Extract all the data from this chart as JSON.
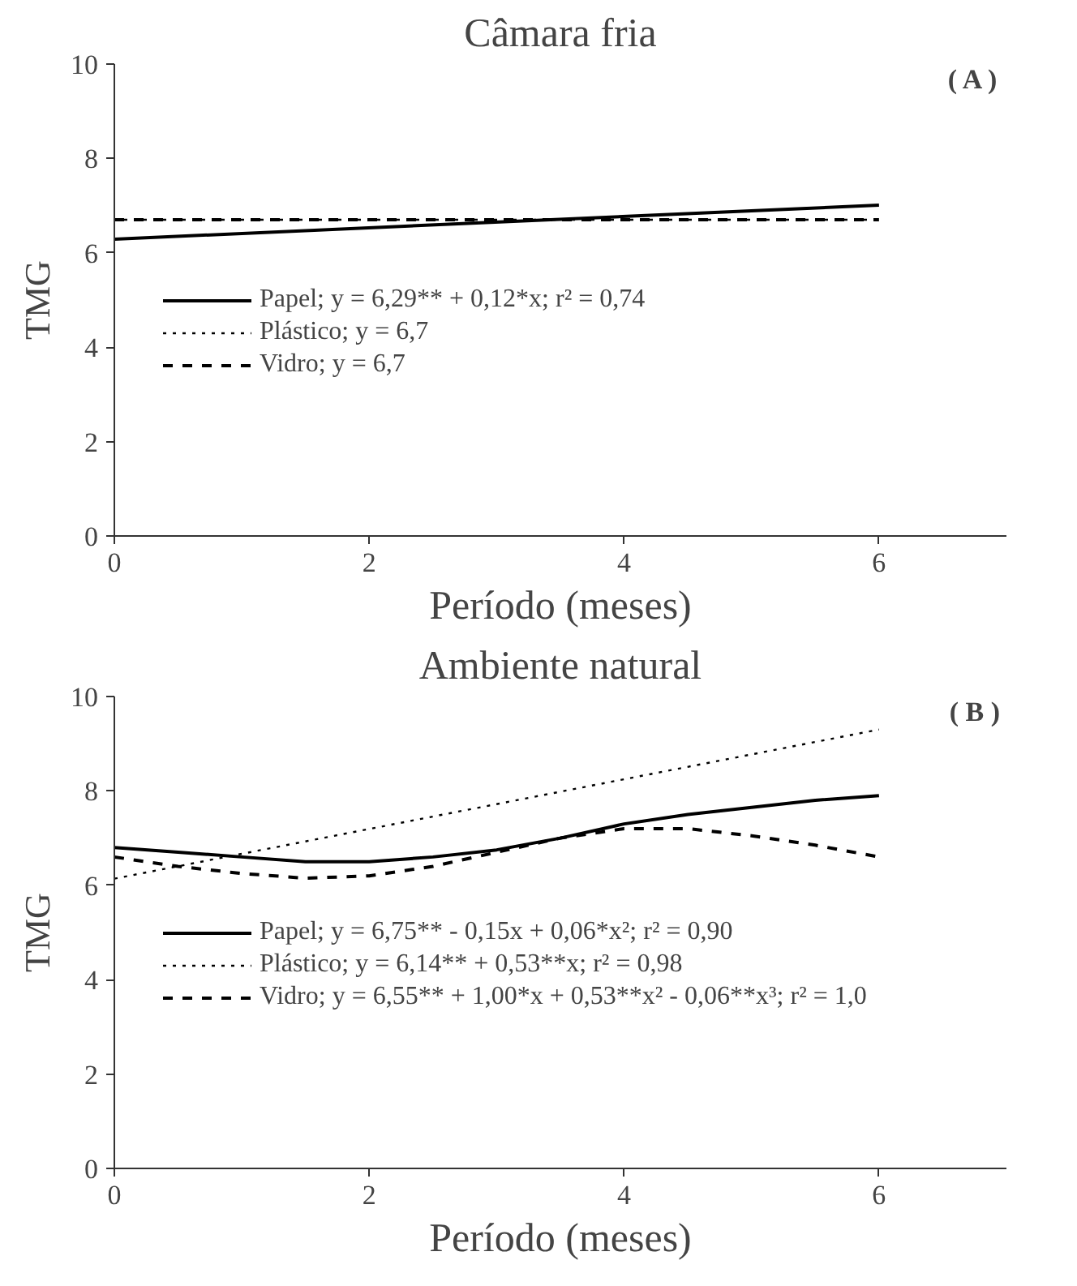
{
  "chart_data": [
    {
      "type": "line",
      "title": "Câmara fria",
      "xlabel": "Período (meses)",
      "ylabel": "TMG",
      "annotations": [
        "( A )"
      ],
      "xlim": [
        0,
        7
      ],
      "xticks": [
        0,
        2,
        4,
        6
      ],
      "ylim": [
        0,
        10
      ],
      "yticks": [
        0,
        2,
        4,
        6,
        8,
        10
      ],
      "grid": false,
      "legend": "left",
      "marker": "none",
      "series": [
        {
          "name": "Papel; y = 6,29** + 0,12*x; r² = 0,74",
          "color": "#000000",
          "line_style": "solid",
          "x": [
            0,
            6
          ],
          "values": [
            6.29,
            7.01
          ]
        },
        {
          "name": "Plástico; y = 6,7",
          "color": "#000000",
          "line_style": "dotted",
          "x": [
            0,
            6
          ],
          "values": [
            6.7,
            6.7
          ]
        },
        {
          "name": "Vidro; y = 6,7",
          "color": "#000000",
          "line_style": "dashed",
          "x": [
            0,
            6
          ],
          "values": [
            6.7,
            6.7
          ]
        }
      ]
    },
    {
      "type": "line",
      "title": "Ambiente natural",
      "xlabel": "Período (meses)",
      "ylabel": "TMG",
      "annotations": [
        "( B )"
      ],
      "xlim": [
        0,
        7
      ],
      "xticks": [
        0,
        2,
        4,
        6
      ],
      "ylim": [
        0,
        10
      ],
      "yticks": [
        0,
        2,
        4,
        6,
        8,
        10
      ],
      "grid": false,
      "legend": "left",
      "marker": "none",
      "series": [
        {
          "name": "Papel; y = 6,75** - 0,15x + 0,06*x²; r² = 0,90",
          "color": "#000000",
          "line_style": "solid",
          "x": [
            0,
            0.5,
            1,
            1.5,
            2,
            2.5,
            3,
            3.5,
            4,
            4.5,
            5,
            5.5,
            6
          ],
          "values": [
            6.8,
            6.7,
            6.6,
            6.5,
            6.5,
            6.6,
            6.75,
            7.0,
            7.3,
            7.5,
            7.65,
            7.8,
            7.9
          ]
        },
        {
          "name": "Plástico; y = 6,14** + 0,53**x; r² = 0,98",
          "color": "#000000",
          "line_style": "dotted",
          "x": [
            0,
            6
          ],
          "values": [
            6.14,
            9.3
          ]
        },
        {
          "name": "Vidro; y = 6,55** + 1,00*x + 0,53**x² - 0,06**x³; r² = 1,0",
          "color": "#000000",
          "line_style": "dashed",
          "x": [
            0,
            0.5,
            1,
            1.5,
            2,
            2.5,
            3,
            3.5,
            4,
            4.5,
            5,
            5.5,
            6
          ],
          "values": [
            6.6,
            6.4,
            6.25,
            6.15,
            6.2,
            6.4,
            6.7,
            7.0,
            7.2,
            7.2,
            7.05,
            6.85,
            6.6
          ]
        }
      ]
    }
  ]
}
